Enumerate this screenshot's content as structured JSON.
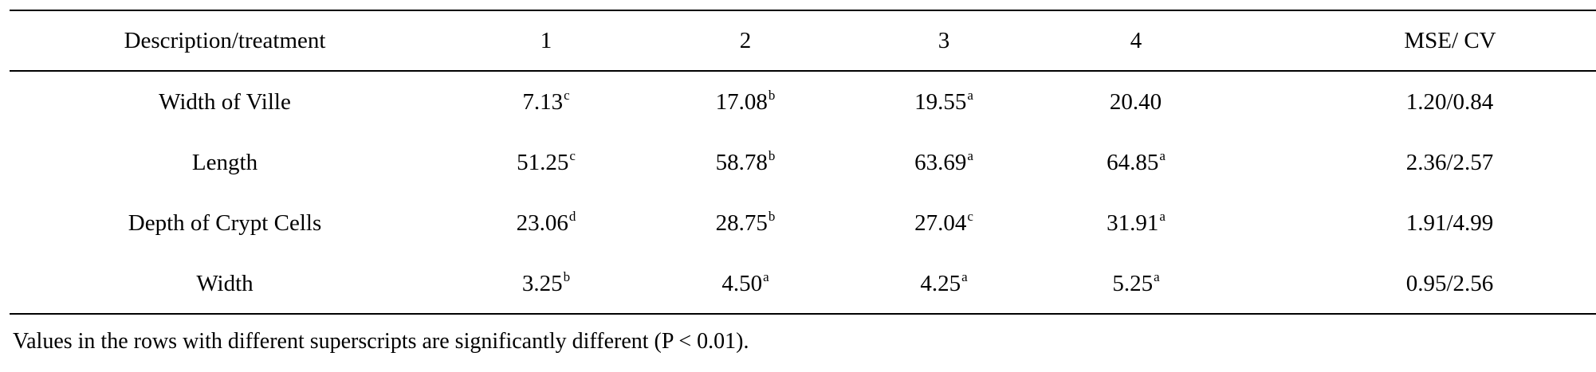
{
  "table": {
    "headers": [
      "Description/treatment",
      "1",
      "2",
      "3",
      "4",
      "MSE/ CV"
    ],
    "rows": [
      {
        "label": "Width of Ville",
        "cells": [
          {
            "value": "7.13",
            "sup": "c"
          },
          {
            "value": "17.08",
            "sup": "b"
          },
          {
            "value": "19.55",
            "sup": "a"
          },
          {
            "value": "20.40",
            "sup": ""
          },
          {
            "value": "1.20/0.84",
            "sup": ""
          }
        ]
      },
      {
        "label": "Length",
        "cells": [
          {
            "value": "51.25",
            "sup": "c"
          },
          {
            "value": "58.78",
            "sup": "b"
          },
          {
            "value": "63.69",
            "sup": "a"
          },
          {
            "value": "64.85",
            "sup": "a"
          },
          {
            "value": "2.36/2.57",
            "sup": ""
          }
        ]
      },
      {
        "label": "Depth of Crypt Cells",
        "cells": [
          {
            "value": "23.06",
            "sup": "d"
          },
          {
            "value": "28.75",
            "sup": "b"
          },
          {
            "value": "27.04",
            "sup": "c"
          },
          {
            "value": "31.91",
            "sup": "a"
          },
          {
            "value": "1.91/4.99",
            "sup": ""
          }
        ]
      },
      {
        "label": "Width",
        "cells": [
          {
            "value": "3.25",
            "sup": "b"
          },
          {
            "value": "4.50",
            "sup": "a"
          },
          {
            "value": "4.25",
            "sup": "a"
          },
          {
            "value": "5.25",
            "sup": "a"
          },
          {
            "value": "0.95/2.56",
            "sup": ""
          }
        ]
      }
    ],
    "footnote": "Values in the rows with different superscripts are significantly different (P < 0.01)."
  }
}
